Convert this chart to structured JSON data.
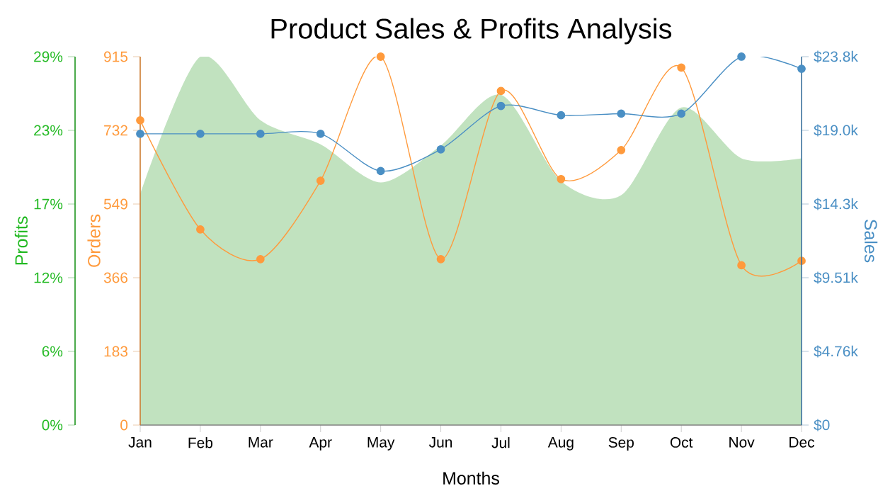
{
  "chart_data": {
    "type": "line",
    "title": "Product Sales & Profits Analysis",
    "xlabel": "Months",
    "ylabel": "Orders",
    "y2label": "Sales",
    "y3label": "Profits",
    "categories": [
      "Jan",
      "Feb",
      "Mar",
      "Apr",
      "May",
      "Jun",
      "Jul",
      "Aug",
      "Sep",
      "Oct",
      "Nov",
      "Dec"
    ],
    "series": [
      {
        "type": "area",
        "axis": "y3",
        "color": "#c1e2bf",
        "values": [
          18.2,
          29,
          24.0,
          22.1,
          19.1,
          22.0,
          26.0,
          19.2,
          18.1,
          25.0,
          21.0,
          21.0
        ]
      },
      {
        "axis": "y",
        "color": "#ff9a3c",
        "marker": "circle",
        "values": [
          757,
          486,
          412,
          607,
          915,
          412,
          830,
          611,
          683,
          888,
          397,
          408
        ]
      },
      {
        "axis": "y2",
        "color": "#4a8fc4",
        "marker": "circle",
        "values": [
          18800,
          18800,
          18800,
          18800,
          16400,
          17800,
          20600,
          20000,
          20100,
          20100,
          23780,
          23000
        ]
      }
    ],
    "ylim": [
      0,
      915
    ],
    "yticks": [
      0,
      183,
      366,
      549,
      732,
      915
    ],
    "y2lim": [
      0,
      23780
    ],
    "y2ticks": [
      {
        "value": 0,
        "label": "$0"
      },
      {
        "value": 4756,
        "label": "$4.76k"
      },
      {
        "value": 9512,
        "label": "$9.51k"
      },
      {
        "value": 14268,
        "label": "$14.3k"
      },
      {
        "value": 19024,
        "label": "$19.0k"
      },
      {
        "value": 23780,
        "label": "$23.8k"
      }
    ],
    "y3lim": [
      0,
      29
    ],
    "y3ticks": [
      {
        "value": 0,
        "label": "0%"
      },
      {
        "value": 5.8,
        "label": "6%"
      },
      {
        "value": 11.6,
        "label": "12%"
      },
      {
        "value": 17.4,
        "label": "17%"
      },
      {
        "value": 23.2,
        "label": "23%"
      },
      {
        "value": 29,
        "label": "29%"
      }
    ],
    "grid": false
  }
}
